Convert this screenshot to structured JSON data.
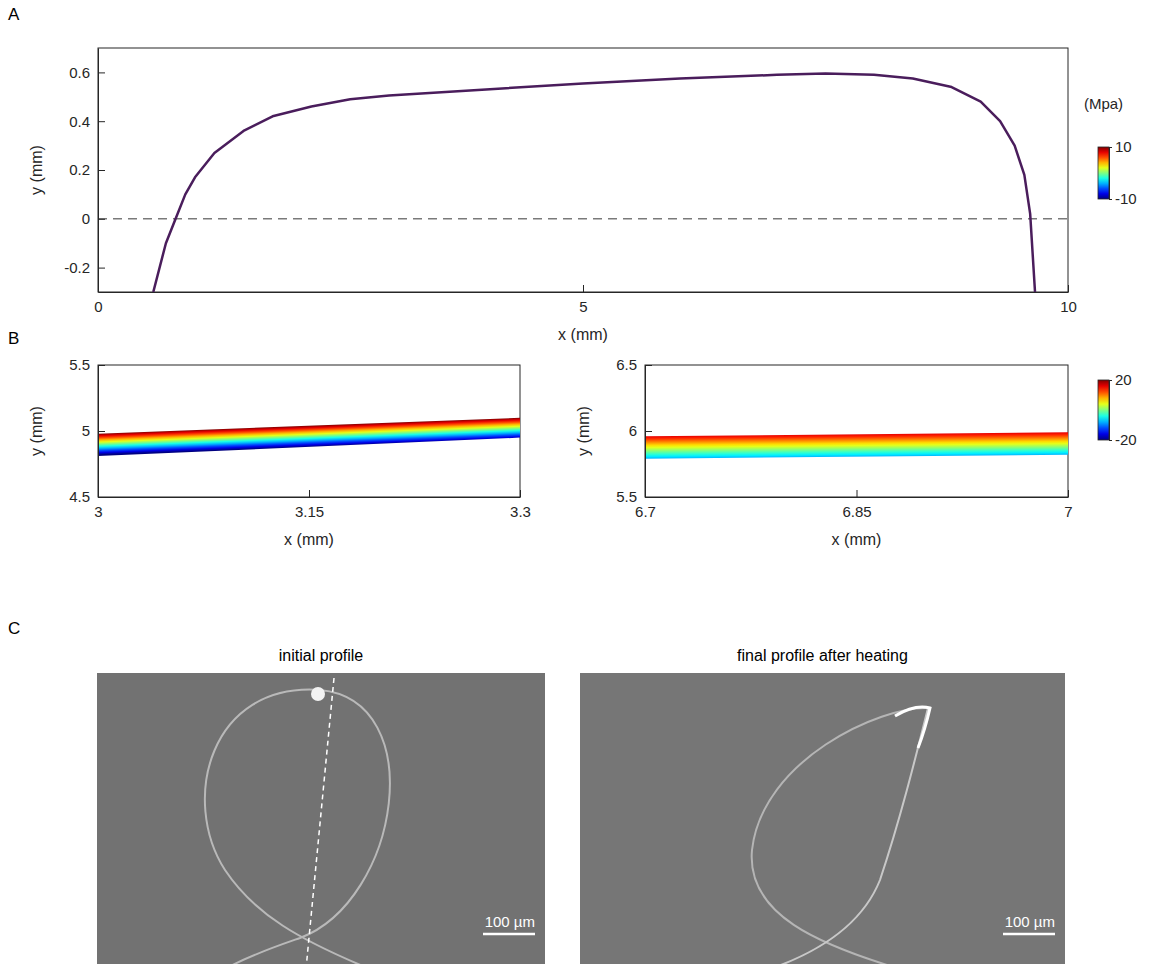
{
  "panel_labels": [
    "A",
    "B",
    "C"
  ],
  "chart_data": [
    {
      "type": "line",
      "x": [
        0.57,
        0.7,
        0.8,
        0.9,
        1.0,
        1.2,
        1.5,
        1.8,
        2.2,
        2.6,
        3.0,
        4.0,
        5.0,
        6.0,
        7.0,
        7.5,
        8.0,
        8.4,
        8.8,
        9.1,
        9.3,
        9.45,
        9.55,
        9.61,
        9.66
      ],
      "values": [
        -0.3,
        -0.1,
        0.0,
        0.1,
        0.17,
        0.27,
        0.36,
        0.42,
        0.46,
        0.49,
        0.505,
        0.53,
        0.555,
        0.575,
        0.59,
        0.595,
        0.59,
        0.575,
        0.54,
        0.48,
        0.4,
        0.3,
        0.18,
        0.02,
        -0.3
      ],
      "color": "#4a1d5c",
      "xlim": [
        0,
        10
      ],
      "xticks": [
        0,
        5,
        10
      ],
      "ylim": [
        -0.3,
        0.7
      ],
      "yticks": [
        -0.2,
        0,
        0.2,
        0.4,
        0.6
      ],
      "xlabel": "x (mm)",
      "ylabel": "y (mm)",
      "reference_line": {
        "y": 0,
        "line_style": "dashed"
      },
      "colorbar": {
        "label": "(Mpa)",
        "range": [
          -10,
          10
        ],
        "ticks": [
          -10,
          10
        ]
      }
    },
    {
      "type": "band",
      "x": [
        3,
        3.3
      ],
      "band_bottom": [
        4.81,
        4.95
      ],
      "band_top": [
        4.98,
        5.1
      ],
      "band_stress": [
        -20,
        20
      ],
      "xlim": [
        3,
        3.3
      ],
      "xticks": [
        3,
        3.15,
        3.3
      ],
      "ylim": [
        4.5,
        5.5
      ],
      "yticks": [
        4.5,
        5,
        5.5
      ],
      "xlabel": "x (mm)",
      "ylabel": "y (mm)"
    },
    {
      "type": "band",
      "x": [
        6.7,
        7
      ],
      "band_bottom": [
        5.79,
        5.82
      ],
      "band_top": [
        5.96,
        5.99
      ],
      "band_stress": [
        -8,
        16
      ],
      "xlim": [
        6.7,
        7
      ],
      "xticks": [
        6.7,
        6.85,
        7
      ],
      "ylim": [
        5.5,
        6.5
      ],
      "yticks": [
        5.5,
        6,
        6.5
      ],
      "xlabel": "x (mm)",
      "ylabel": "y (mm)",
      "colorbar": {
        "range": [
          -20,
          20
        ],
        "ticks": [
          -20,
          20
        ]
      }
    }
  ],
  "images": [
    {
      "title": "initial profile",
      "scale_bar": "100 µm"
    },
    {
      "title": "final profile after heating",
      "scale_bar": "100 µm"
    }
  ]
}
